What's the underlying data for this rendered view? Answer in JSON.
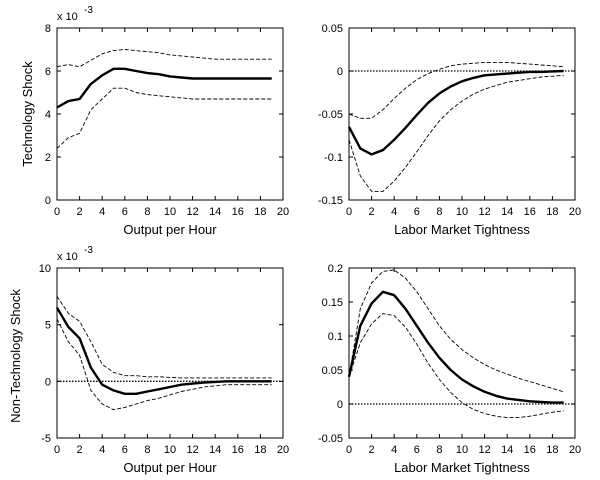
{
  "row_labels": [
    "Technology Shock",
    "Non-Technology Shock"
  ],
  "chart_data": [
    {
      "type": "line",
      "xlabel": "Output per Hour",
      "ylabel": "Technology Shock",
      "y_scale_label": "x 10",
      "y_scale_exponent": "-3",
      "xlim": [
        0,
        20
      ],
      "ylim": [
        0,
        8
      ],
      "xticks": [
        "0",
        "2",
        "4",
        "6",
        "8",
        "10",
        "12",
        "14",
        "16",
        "18",
        "20"
      ],
      "xtick_values": [
        0,
        2,
        4,
        6,
        8,
        10,
        12,
        14,
        16,
        18,
        20
      ],
      "yticks": [
        "0",
        "2",
        "4",
        "6",
        "8"
      ],
      "ytick_values": [
        0,
        2,
        4,
        6,
        8
      ],
      "zero_line": false,
      "x": [
        0,
        1,
        2,
        3,
        4,
        5,
        6,
        7,
        8,
        9,
        10,
        11,
        12,
        13,
        14,
        15,
        16,
        17,
        18,
        19
      ],
      "series": [
        {
          "style": "solid",
          "values": [
            4.3,
            4.6,
            4.7,
            5.4,
            5.8,
            6.1,
            6.1,
            6.0,
            5.9,
            5.85,
            5.75,
            5.7,
            5.65,
            5.65,
            5.65,
            5.65,
            5.65,
            5.65,
            5.65,
            5.65
          ]
        },
        {
          "style": "dashed",
          "values": [
            6.2,
            6.3,
            6.2,
            6.5,
            6.8,
            6.95,
            7.0,
            6.95,
            6.9,
            6.85,
            6.75,
            6.7,
            6.65,
            6.6,
            6.55,
            6.55,
            6.55,
            6.55,
            6.55,
            6.55
          ]
        },
        {
          "style": "dashed",
          "values": [
            2.4,
            2.9,
            3.1,
            4.2,
            4.7,
            5.2,
            5.2,
            5.0,
            4.9,
            4.85,
            4.8,
            4.75,
            4.7,
            4.7,
            4.7,
            4.7,
            4.7,
            4.7,
            4.7,
            4.7
          ]
        }
      ]
    },
    {
      "type": "line",
      "xlabel": "Labor Market Tightness",
      "ylabel": "",
      "xlim": [
        0,
        20
      ],
      "ylim": [
        -0.15,
        0.05
      ],
      "xticks": [
        "0",
        "2",
        "4",
        "6",
        "8",
        "10",
        "12",
        "14",
        "16",
        "18",
        "20"
      ],
      "xtick_values": [
        0,
        2,
        4,
        6,
        8,
        10,
        12,
        14,
        16,
        18,
        20
      ],
      "yticks": [
        "0.05",
        "0",
        "-0.05",
        "-0.1",
        "-0.15"
      ],
      "ytick_values": [
        0.05,
        0,
        -0.05,
        -0.1,
        -0.15
      ],
      "zero_line": true,
      "x": [
        0,
        1,
        2,
        3,
        4,
        5,
        6,
        7,
        8,
        9,
        10,
        11,
        12,
        13,
        14,
        15,
        16,
        17,
        18,
        19
      ],
      "series": [
        {
          "style": "solid",
          "values": [
            -0.065,
            -0.09,
            -0.097,
            -0.092,
            -0.08,
            -0.066,
            -0.051,
            -0.037,
            -0.026,
            -0.018,
            -0.012,
            -0.008,
            -0.005,
            -0.004,
            -0.003,
            -0.002,
            -0.001,
            -0.001,
            -0.0005,
            0
          ]
        },
        {
          "style": "dashed",
          "values": [
            -0.05,
            -0.055,
            -0.055,
            -0.045,
            -0.032,
            -0.02,
            -0.01,
            -0.003,
            0.002,
            0.006,
            0.008,
            0.009,
            0.01,
            0.01,
            0.01,
            0.009,
            0.008,
            0.007,
            0.006,
            0.005
          ]
        },
        {
          "style": "dashed",
          "values": [
            -0.08,
            -0.122,
            -0.14,
            -0.14,
            -0.128,
            -0.112,
            -0.094,
            -0.075,
            -0.058,
            -0.045,
            -0.035,
            -0.027,
            -0.021,
            -0.017,
            -0.013,
            -0.011,
            -0.009,
            -0.007,
            -0.006,
            -0.005
          ]
        }
      ]
    },
    {
      "type": "line",
      "xlabel": "Output per Hour",
      "ylabel": "Non-Technology Shock",
      "y_scale_label": "x 10",
      "y_scale_exponent": "-3",
      "xlim": [
        0,
        20
      ],
      "ylim": [
        -5,
        10
      ],
      "xticks": [
        "0",
        "2",
        "4",
        "6",
        "8",
        "10",
        "12",
        "14",
        "16",
        "18",
        "20"
      ],
      "xtick_values": [
        0,
        2,
        4,
        6,
        8,
        10,
        12,
        14,
        16,
        18,
        20
      ],
      "yticks": [
        "10",
        "5",
        "0",
        "-5"
      ],
      "ytick_values": [
        10,
        5,
        0,
        -5
      ],
      "zero_line": true,
      "x": [
        0,
        1,
        2,
        3,
        4,
        5,
        6,
        7,
        8,
        9,
        10,
        11,
        12,
        13,
        14,
        15,
        16,
        17,
        18,
        19
      ],
      "series": [
        {
          "style": "solid",
          "values": [
            6.5,
            4.8,
            3.8,
            1.2,
            -0.3,
            -0.8,
            -1.1,
            -1.1,
            -0.9,
            -0.7,
            -0.5,
            -0.3,
            -0.2,
            -0.1,
            -0.05,
            0,
            0,
            0,
            0,
            0
          ]
        },
        {
          "style": "dashed",
          "values": [
            7.5,
            6.0,
            5.3,
            3.5,
            1.5,
            0.8,
            0.5,
            0.5,
            0.4,
            0.4,
            0.35,
            0.3,
            0.3,
            0.3,
            0.3,
            0.3,
            0.3,
            0.3,
            0.3,
            0.3
          ]
        },
        {
          "style": "dashed",
          "values": [
            5.5,
            3.5,
            2.3,
            -0.8,
            -2.0,
            -2.5,
            -2.3,
            -2.0,
            -1.7,
            -1.5,
            -1.2,
            -0.9,
            -0.7,
            -0.5,
            -0.4,
            -0.3,
            -0.3,
            -0.3,
            -0.3,
            -0.3
          ]
        }
      ]
    },
    {
      "type": "line",
      "xlabel": "Labor Market Tightness",
      "ylabel": "",
      "xlim": [
        0,
        20
      ],
      "ylim": [
        -0.05,
        0.2
      ],
      "xticks": [
        "0",
        "2",
        "4",
        "6",
        "8",
        "10",
        "12",
        "14",
        "16",
        "18",
        "20"
      ],
      "xtick_values": [
        0,
        2,
        4,
        6,
        8,
        10,
        12,
        14,
        16,
        18,
        20
      ],
      "yticks": [
        "0.2",
        "0.15",
        "0.1",
        "0.05",
        "0",
        "-0.05"
      ],
      "ytick_values": [
        0.2,
        0.15,
        0.1,
        0.05,
        0,
        -0.05
      ],
      "zero_line": true,
      "x": [
        0,
        1,
        2,
        3,
        4,
        5,
        6,
        7,
        8,
        9,
        10,
        11,
        12,
        13,
        14,
        15,
        16,
        17,
        18,
        19
      ],
      "series": [
        {
          "style": "solid",
          "values": [
            0.04,
            0.115,
            0.148,
            0.165,
            0.16,
            0.14,
            0.115,
            0.09,
            0.068,
            0.05,
            0.036,
            0.026,
            0.018,
            0.012,
            0.008,
            0.006,
            0.004,
            0.003,
            0.002,
            0.002
          ]
        },
        {
          "style": "dashed",
          "values": [
            0.04,
            0.14,
            0.178,
            0.195,
            0.197,
            0.185,
            0.165,
            0.14,
            0.115,
            0.095,
            0.08,
            0.068,
            0.058,
            0.05,
            0.044,
            0.038,
            0.033,
            0.028,
            0.023,
            0.018
          ]
        },
        {
          "style": "dashed",
          "values": [
            0.04,
            0.09,
            0.118,
            0.133,
            0.13,
            0.113,
            0.088,
            0.06,
            0.036,
            0.017,
            0.002,
            -0.008,
            -0.014,
            -0.018,
            -0.02,
            -0.02,
            -0.018,
            -0.015,
            -0.012,
            -0.01
          ]
        }
      ]
    }
  ]
}
